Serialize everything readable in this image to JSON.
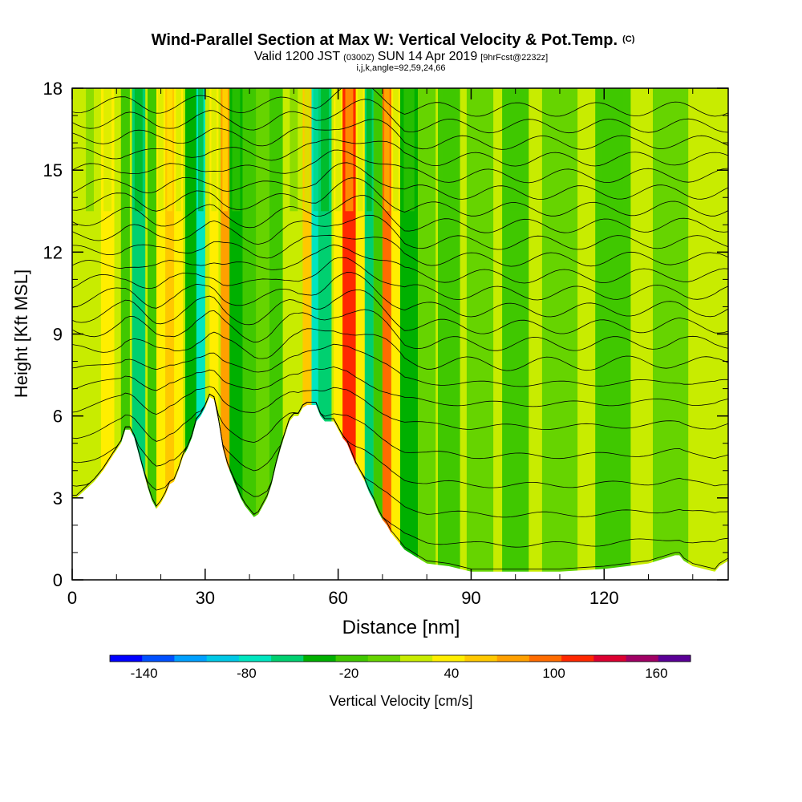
{
  "chart_data": {
    "type": "heatmap",
    "title": {
      "main": "Wind-Parallel Section at Max W: Vertical Velocity & Pot.Temp.",
      "copyright": "(C)",
      "valid_prefix": "Valid 1200 JST",
      "valid_utc": "(0300Z)",
      "valid_date": "SUN 14 Apr 2019",
      "forecast": "[9hrFcst@2232z]",
      "indices": "i,j,k,angle=92,59,24,66"
    },
    "xlabel": "Distance [nm]",
    "ylabel": "Height [Kft MSL]",
    "xlim": [
      0,
      148
    ],
    "ylim": [
      0,
      18
    ],
    "x_ticks": [
      0,
      30,
      60,
      90,
      120
    ],
    "y_ticks": [
      0,
      3,
      6,
      9,
      12,
      15,
      18
    ],
    "colorbar": {
      "label": "Vertical Velocity [cm/s]",
      "tick_labels": [
        -140,
        -80,
        -20,
        40,
        100,
        160
      ],
      "bins": [
        -160,
        -140,
        -120,
        -100,
        -80,
        -60,
        -40,
        -20,
        0,
        20,
        40,
        60,
        80,
        100,
        120,
        140,
        160,
        180
      ],
      "colors": [
        "#0000ff",
        "#0050ff",
        "#00a0ff",
        "#00c8e6",
        "#00e6c0",
        "#00d070",
        "#00b000",
        "#40c800",
        "#66d400",
        "#c8ec00",
        "#ffee00",
        "#ffc800",
        "#ffa000",
        "#ff6c00",
        "#ff2800",
        "#dc0030",
        "#a00064",
        "#5a0096"
      ]
    },
    "terrain": {
      "x": [
        0,
        1,
        3,
        5,
        7,
        9,
        11,
        12,
        13,
        14,
        15,
        16,
        17,
        18,
        19,
        20,
        21,
        22,
        23,
        24,
        25,
        26,
        27,
        28,
        29,
        30,
        31,
        32,
        33,
        34,
        35,
        36,
        37,
        38,
        39,
        40,
        41,
        42,
        43,
        44,
        45,
        46,
        47,
        48,
        49,
        50,
        51,
        52,
        53,
        54,
        55,
        56,
        57,
        58,
        59,
        60,
        61,
        62,
        63,
        64,
        65,
        66,
        67,
        68,
        69,
        70,
        71,
        72,
        73,
        74,
        75,
        76,
        77,
        78,
        79,
        80,
        85,
        90,
        100,
        110,
        120,
        130,
        136,
        137,
        138,
        140,
        145,
        146,
        148
      ],
      "height_kft": [
        3.0,
        3.0,
        3.3,
        3.6,
        4.0,
        4.5,
        5.0,
        5.5,
        5.5,
        5.2,
        4.6,
        4.0,
        3.4,
        2.9,
        2.6,
        2.8,
        3.1,
        3.5,
        3.6,
        4.0,
        4.5,
        4.8,
        5.2,
        5.8,
        6.0,
        6.3,
        6.7,
        6.6,
        5.8,
        4.8,
        4.2,
        3.8,
        3.4,
        3.0,
        2.7,
        2.5,
        2.3,
        2.4,
        2.7,
        3.0,
        3.5,
        4.2,
        4.8,
        5.3,
        5.8,
        6.0,
        6.0,
        6.3,
        6.4,
        6.4,
        6.4,
        6.0,
        5.8,
        5.8,
        5.8,
        5.5,
        5.2,
        5.0,
        4.6,
        4.2,
        3.9,
        3.6,
        3.2,
        2.9,
        2.5,
        2.2,
        2.0,
        1.7,
        1.5,
        1.3,
        1.1,
        1.0,
        0.9,
        0.8,
        0.7,
        0.6,
        0.5,
        0.3,
        0.3,
        0.3,
        0.4,
        0.6,
        0.9,
        0.9,
        0.7,
        0.5,
        0.3,
        0.5,
        0.7
      ]
    },
    "velocity_columns": [
      {
        "x": 4,
        "width": 3,
        "w_cm_s": 30
      },
      {
        "x": 8,
        "width": 3,
        "w_cm_s": 45
      },
      {
        "x": 12,
        "width": 2,
        "w_cm_s": -20
      },
      {
        "x": 15,
        "width": 3,
        "w_cm_s": -45
      },
      {
        "x": 18,
        "width": 2,
        "w_cm_s": -15
      },
      {
        "x": 20,
        "width": 2,
        "w_cm_s": 55
      },
      {
        "x": 22,
        "width": 2,
        "w_cm_s": 75
      },
      {
        "x": 24,
        "width": 2,
        "w_cm_s": 40
      },
      {
        "x": 27,
        "width": 3,
        "w_cm_s": -40
      },
      {
        "x": 29,
        "width": 2,
        "w_cm_s": -65
      },
      {
        "x": 32,
        "width": 2,
        "w_cm_s": 50
      },
      {
        "x": 34.5,
        "width": 2,
        "w_cm_s": 80
      },
      {
        "x": 37,
        "width": 3,
        "w_cm_s": -30
      },
      {
        "x": 40,
        "width": 3,
        "w_cm_s": -10
      },
      {
        "x": 43,
        "width": 3,
        "w_cm_s": 15
      },
      {
        "x": 46,
        "width": 3,
        "w_cm_s": -20
      },
      {
        "x": 50,
        "width": 3,
        "w_cm_s": 35
      },
      {
        "x": 53,
        "width": 2,
        "w_cm_s": 70
      },
      {
        "x": 55,
        "width": 2,
        "w_cm_s": -80
      },
      {
        "x": 57,
        "width": 3,
        "w_cm_s": -50
      },
      {
        "x": 60,
        "width": 2,
        "w_cm_s": 45
      },
      {
        "x": 62.5,
        "width": 3,
        "w_cm_s": 125
      },
      {
        "x": 65,
        "width": 2,
        "w_cm_s": 40
      },
      {
        "x": 67,
        "width": 2,
        "w_cm_s": -60
      },
      {
        "x": 69,
        "width": 2,
        "w_cm_s": -20
      },
      {
        "x": 71,
        "width": 2,
        "w_cm_s": 110
      },
      {
        "x": 73,
        "width": 2,
        "w_cm_s": 50
      },
      {
        "x": 76,
        "width": 4,
        "w_cm_s": -25
      },
      {
        "x": 80,
        "width": 4,
        "w_cm_s": 10
      },
      {
        "x": 85,
        "width": 5,
        "w_cm_s": -5
      },
      {
        "x": 92,
        "width": 6,
        "w_cm_s": 15
      },
      {
        "x": 100,
        "width": 6,
        "w_cm_s": -10
      },
      {
        "x": 110,
        "width": 8,
        "w_cm_s": 5
      },
      {
        "x": 122,
        "width": 8,
        "w_cm_s": -8
      },
      {
        "x": 135,
        "width": 8,
        "w_cm_s": 0
      }
    ],
    "contour_levels_kft": [
      1.0,
      2.0,
      3.0,
      4.0,
      5.0,
      6.0,
      6.8,
      7.5,
      8.2,
      8.9,
      9.5,
      10.1,
      10.7,
      11.3,
      11.9,
      12.5,
      13.1,
      13.7,
      14.3,
      14.9,
      15.5,
      16.1,
      16.7,
      17.3
    ]
  }
}
